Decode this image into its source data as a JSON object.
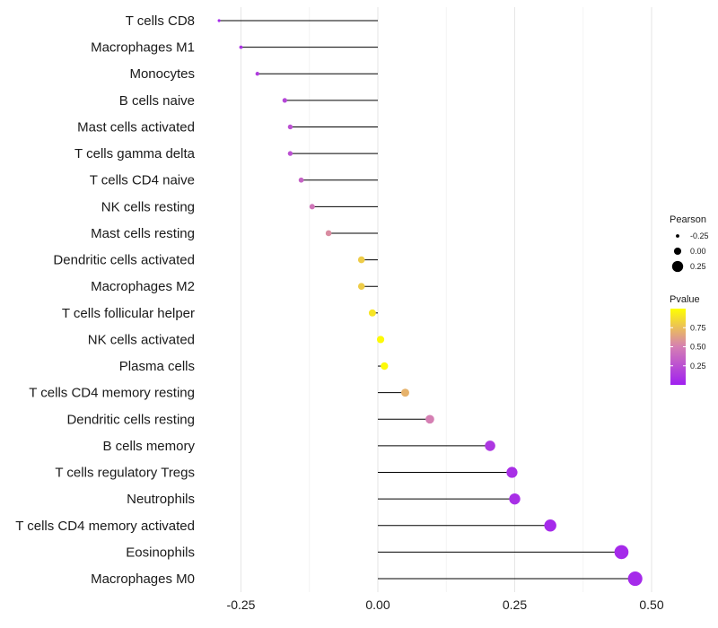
{
  "chart_data": {
    "type": "lollipop",
    "categories": [
      "T cells CD8",
      "Macrophages M1",
      "Monocytes",
      "B cells naive",
      "Mast cells activated",
      "T cells gamma delta",
      "T cells CD4 naive",
      "NK cells resting",
      "Mast cells resting",
      "Dendritic cells activated",
      "Macrophages M2",
      "T cells follicular helper",
      "NK cells activated",
      "Plasma cells",
      "T cells CD4 memory resting",
      "Dendritic cells resting",
      "B cells memory",
      "T cells regulatory  Tregs ",
      "Neutrophils",
      "T cells CD4 memory activated",
      "Eosinophils",
      "Macrophages M0"
    ],
    "pearson": [
      -0.29,
      -0.25,
      -0.22,
      -0.17,
      -0.16,
      -0.16,
      -0.14,
      -0.12,
      -0.09,
      -0.03,
      -0.03,
      -0.01,
      0.005,
      0.012,
      0.05,
      0.095,
      0.205,
      0.245,
      0.25,
      0.315,
      0.445,
      0.47
    ],
    "pvalue": [
      0.05,
      0.1,
      0.15,
      0.2,
      0.25,
      0.25,
      0.35,
      0.45,
      0.55,
      0.8,
      0.8,
      0.9,
      0.98,
      0.98,
      0.7,
      0.5,
      0.12,
      0.08,
      0.08,
      0.05,
      0.05,
      0.05
    ],
    "x_ticks": [
      -0.25,
      0.0,
      0.25,
      0.5
    ],
    "x_tick_labels": [
      "-0.25",
      "0.00",
      "0.25",
      "0.50"
    ],
    "xlim": [
      -0.3,
      0.5
    ],
    "legend": {
      "size_title": "Pearson",
      "size_values": [
        -0.25,
        0.0,
        0.25
      ],
      "size_labels": [
        "-0.25",
        "0.00",
        "0.25"
      ],
      "color_title": "Pvalue",
      "color_ticks": [
        0.25,
        0.5,
        0.75
      ],
      "color_labels": [
        "0.25",
        "0.50",
        "0.75"
      ],
      "color_range": [
        0.0,
        1.0
      ],
      "color_low": "#a020f0",
      "color_mid": "#d57fb3",
      "color_high": "#ffff00"
    },
    "gridlines": true,
    "stem_color": "#000000"
  }
}
